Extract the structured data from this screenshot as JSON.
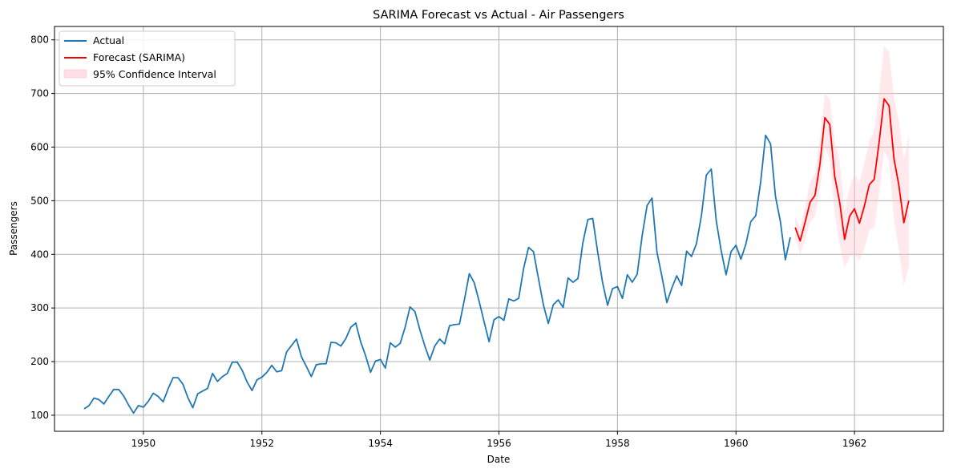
{
  "chart_data": {
    "type": "line",
    "title": "SARIMA Forecast vs Actual - Air Passengers",
    "xlabel": "Date",
    "ylabel": "Passengers",
    "x_range": [
      1948.5,
      1963.5
    ],
    "ylim": [
      70,
      825
    ],
    "x_ticks": [
      1950,
      1952,
      1954,
      1956,
      1958,
      1960,
      1962
    ],
    "y_ticks": [
      100,
      200,
      300,
      400,
      500,
      600,
      700,
      800
    ],
    "grid": true,
    "legend_position": "top-left",
    "legend": [
      "Actual",
      "Forecast (SARIMA)",
      "95% Confidence Interval"
    ],
    "colors": {
      "actual": "#1f77b4",
      "forecast": "#ff0000",
      "ci": "#ffc0cb"
    },
    "series": [
      {
        "name": "Actual",
        "start": 1949.0,
        "step": 0.0833333,
        "values": [
          112,
          118,
          132,
          129,
          121,
          135,
          148,
          148,
          136,
          119,
          104,
          118,
          115,
          126,
          141,
          135,
          125,
          149,
          170,
          170,
          158,
          133,
          114,
          140,
          145,
          150,
          178,
          163,
          172,
          178,
          199,
          199,
          184,
          162,
          146,
          166,
          171,
          180,
          193,
          181,
          183,
          218,
          230,
          242,
          209,
          191,
          172,
          194,
          196,
          196,
          236,
          235,
          229,
          243,
          264,
          272,
          237,
          211,
          180,
          201,
          204,
          188,
          235,
          227,
          234,
          264,
          302,
          293,
          259,
          229,
          203,
          229,
          242,
          233,
          267,
          269,
          270,
          315,
          364,
          347,
          312,
          274,
          237,
          278,
          284,
          277,
          317,
          313,
          318,
          374,
          413,
          405,
          355,
          306,
          271,
          306,
          315,
          301,
          356,
          348,
          355,
          422,
          465,
          467,
          404,
          347,
          305,
          336,
          340,
          318,
          362,
          348,
          363,
          435,
          491,
          505,
          404,
          359,
          310,
          337,
          360,
          342,
          406,
          396,
          420,
          472,
          548,
          559,
          463,
          407,
          362,
          405,
          417,
          391,
          419,
          461,
          472,
          535,
          622,
          606,
          508,
          461,
          390,
          432
        ]
      },
      {
        "name": "Forecast (SARIMA)",
        "start": 1961.0,
        "step": 0.0833333,
        "values": [
          450,
          425,
          460,
          497,
          510,
          568,
          655,
          642,
          545,
          497,
          428,
          471,
          485,
          458,
          490,
          530,
          540,
          610,
          690,
          677,
          578,
          528,
          459,
          500
        ]
      },
      {
        "name": "95% Confidence Interval",
        "start": 1961.0,
        "step": 0.0833333,
        "lower": [
          430,
          400,
          428,
          460,
          470,
          520,
          600,
          580,
          475,
          420,
          375,
          395,
          400,
          388,
          410,
          445,
          450,
          515,
          592,
          575,
          465,
          408,
          342,
          378
        ],
        "upper": [
          470,
          450,
          490,
          535,
          550,
          615,
          700,
          690,
          610,
          575,
          480,
          525,
          550,
          535,
          570,
          612,
          630,
          705,
          788,
          778,
          690,
          648,
          576,
          620
        ]
      }
    ]
  }
}
